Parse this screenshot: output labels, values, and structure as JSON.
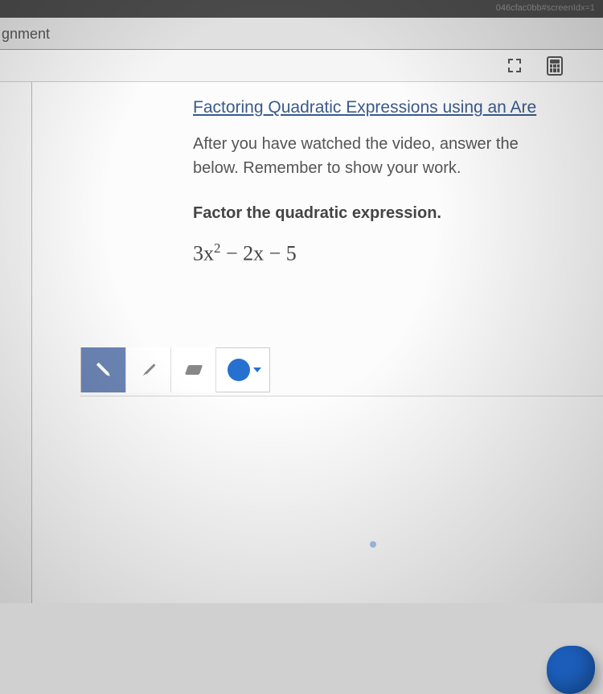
{
  "browser": {
    "url_fragment": "046cfac0bb#screenIdx=1"
  },
  "tab": {
    "label": "gnment"
  },
  "lesson": {
    "title": "Factoring Quadratic Expressions using an Are",
    "instructions_line1": "After you have watched the video, answer the",
    "instructions_line2": "below. Remember to show your work.",
    "prompt": "Factor the quadratic expression.",
    "expression": {
      "coef_a": "3",
      "var_a": "x",
      "exp_a": "2",
      "op1": " − ",
      "coef_b": "2",
      "var_b": "x",
      "op2": " − ",
      "const": "5"
    }
  },
  "colors": {
    "title_link": "#3a5a8a",
    "active_tool_bg": "#6b85b5",
    "swatch": "#2670d0",
    "ink_blob": "#1b5db8",
    "stray_dot": "#a6c5e8"
  }
}
